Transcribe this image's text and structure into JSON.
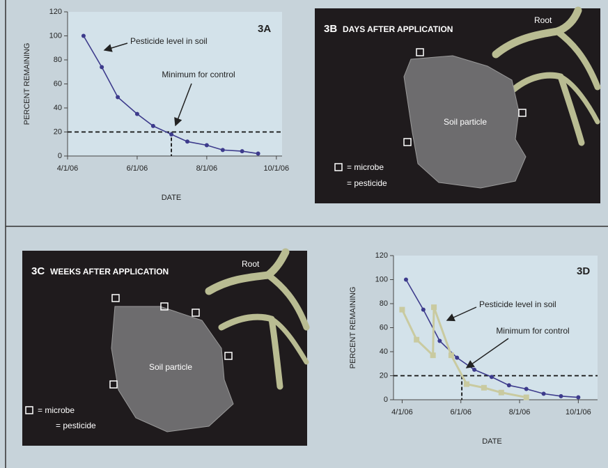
{
  "chart_data": [
    {
      "type": "line",
      "panel_label": "3A",
      "y_label": "PERCENT REMAINING",
      "x_label": "DATE",
      "annotations": [
        "Pesticide level in soil",
        "Minimum for control"
      ],
      "threshold": 20,
      "threshold_date": "2006-07-01",
      "xlim": [
        "2006-04-01",
        "2006-10-06"
      ],
      "xticks": [
        {
          "value": "2006-04-01",
          "label": "4/1/06"
        },
        {
          "value": "2006-06-01",
          "label": "6/1/06"
        },
        {
          "value": "2006-08-01",
          "label": "8/1/06"
        },
        {
          "value": "2006-10-01",
          "label": "10/1/06"
        }
      ],
      "ylim": [
        0,
        120
      ],
      "yticks": [
        0,
        20,
        40,
        60,
        80,
        100,
        120
      ],
      "series": [
        {
          "color": "#3d3b8c",
          "marker": "circle",
          "x": [
            "2006-04-15",
            "2006-05-01",
            "2006-05-15",
            "2006-06-01",
            "2006-06-15",
            "2006-07-01",
            "2006-07-15",
            "2006-08-01",
            "2006-08-15",
            "2006-09-01",
            "2006-09-15"
          ],
          "values": [
            100,
            74,
            49,
            35,
            25,
            18,
            12,
            9,
            5,
            4,
            2
          ]
        }
      ]
    },
    {
      "type": "line",
      "panel_label": "3D",
      "y_label": "PERCENT REMAINING",
      "x_label": "DATE",
      "annotations": [
        "Pesticide level in soil",
        "Minimum for control"
      ],
      "threshold": 20,
      "threshold_date": "2006-06-02",
      "xlim": [
        "2006-03-23",
        "2006-10-21"
      ],
      "xticks": [
        {
          "value": "2006-04-01",
          "label": "4/1/06"
        },
        {
          "value": "2006-06-01",
          "label": "6/1/06"
        },
        {
          "value": "2006-08-01",
          "label": "8/1/06"
        },
        {
          "value": "2006-10-01",
          "label": "10/1/06"
        }
      ],
      "ylim": [
        0,
        120
      ],
      "yticks": [
        0,
        20,
        40,
        60,
        80,
        100,
        120
      ],
      "series": [
        {
          "color": "#3d3b8c",
          "marker": "circle",
          "x": [
            "2006-04-05",
            "2006-04-23",
            "2006-05-10",
            "2006-05-28",
            "2006-06-15",
            "2006-07-03",
            "2006-07-21",
            "2006-08-08",
            "2006-08-26",
            "2006-09-13",
            "2006-10-01"
          ],
          "values": [
            100,
            75,
            49,
            35,
            25,
            19,
            12,
            9,
            5,
            3,
            2
          ]
        },
        {
          "color": "#c9caa0",
          "marker": "square",
          "x": [
            "2006-04-01",
            "2006-04-16",
            "2006-05-03",
            "2006-05-04",
            "2006-05-22",
            "2006-06-07",
            "2006-06-25",
            "2006-07-13",
            "2006-08-08"
          ],
          "values": [
            75,
            50,
            37,
            77,
            37,
            13,
            10,
            6,
            2
          ]
        }
      ]
    }
  ],
  "diagrams": [
    {
      "label": "3B",
      "title": "DAYS AFTER APPLICATION",
      "root": "Root",
      "particle": "Soil particle",
      "legend": [
        "= microbe",
        "= pesticide"
      ]
    },
    {
      "label": "3C",
      "title": "WEEKS AFTER APPLICATION",
      "root": "Root",
      "particle": "Soil particle",
      "legend": [
        "= microbe",
        "= pesticide"
      ]
    }
  ]
}
